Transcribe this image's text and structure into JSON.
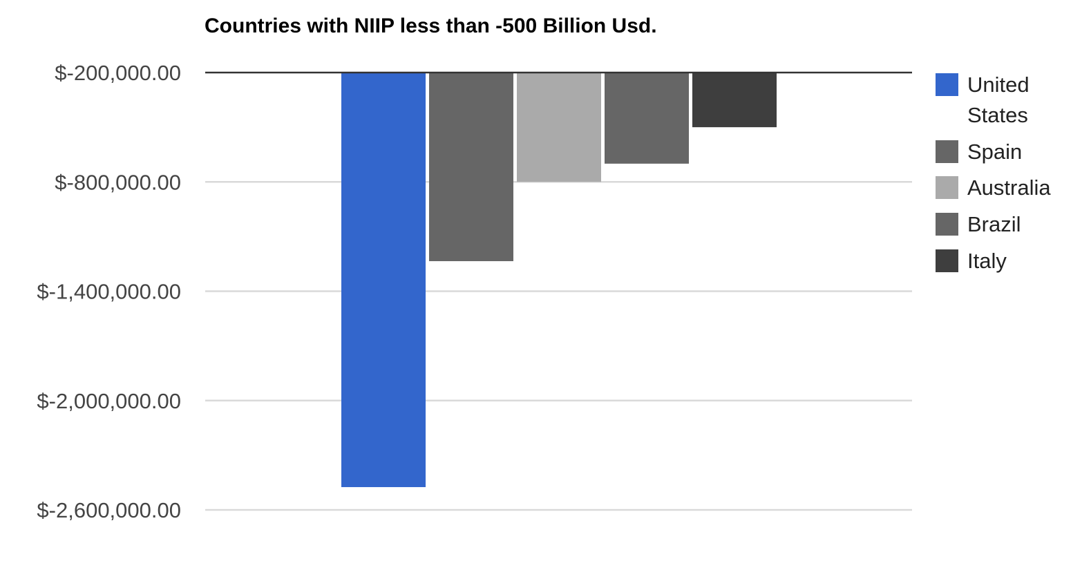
{
  "chart_data": {
    "type": "bar",
    "title": "Countries with NIIP less than -500 Billion Usd.",
    "xlabel": "",
    "ylabel": "",
    "ylim": [
      -2600000,
      -200000
    ],
    "y_ticks": [
      -200000,
      -800000,
      -1400000,
      -2000000,
      -2600000
    ],
    "y_tick_labels": [
      "$-200,000.00",
      "$-800,000.00",
      "$-1,400,000.00",
      "$-2,000,000.00",
      "$-2,600,000.00"
    ],
    "grid": true,
    "legend_position": "right",
    "categories": [
      ""
    ],
    "series": [
      {
        "name": "United States",
        "values": [
          -2475000
        ],
        "color": "#3366cc"
      },
      {
        "name": "Spain",
        "values": [
          -1235000
        ],
        "color": "#666666"
      },
      {
        "name": "Australia",
        "values": [
          -800000
        ],
        "color": "#aaaaaa"
      },
      {
        "name": "Brazil",
        "values": [
          -700000
        ],
        "color": "#666666"
      },
      {
        "name": "Italy",
        "values": [
          -500000
        ],
        "color": "#3e3e3e"
      }
    ]
  }
}
